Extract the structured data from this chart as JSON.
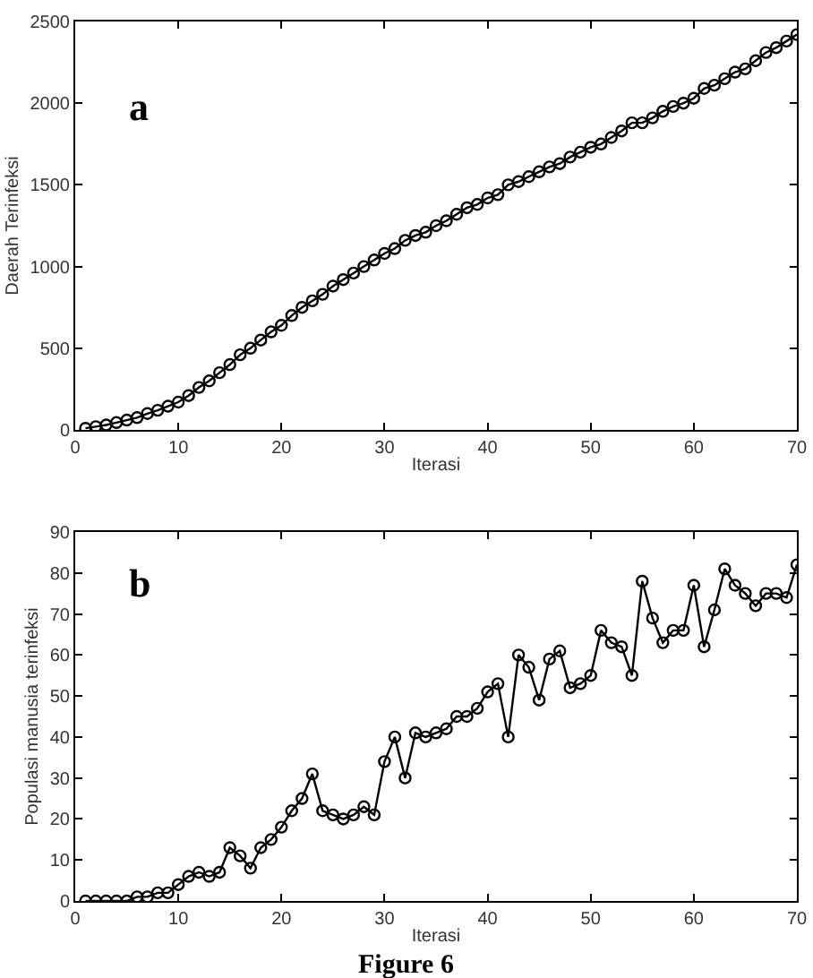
{
  "chart_data": [
    {
      "type": "line",
      "annotations": [
        "a"
      ],
      "xlabel": "Iterasi",
      "ylabel": "Daerah Terinfeksi",
      "marker": "circle",
      "line_style": "solid",
      "xlim": [
        0,
        70
      ],
      "xticks": [
        0,
        10,
        20,
        30,
        40,
        50,
        60,
        70
      ],
      "ylim": [
        0,
        2500
      ],
      "yticks": [
        0,
        500,
        1000,
        1500,
        2000,
        2500
      ],
      "x": [
        1,
        2,
        3,
        4,
        5,
        6,
        7,
        8,
        9,
        10,
        11,
        12,
        13,
        14,
        15,
        16,
        17,
        18,
        19,
        20,
        21,
        22,
        23,
        24,
        25,
        26,
        27,
        28,
        29,
        30,
        31,
        32,
        33,
        34,
        35,
        36,
        37,
        38,
        39,
        40,
        41,
        42,
        43,
        44,
        45,
        46,
        47,
        48,
        49,
        50,
        51,
        52,
        53,
        54,
        55,
        56,
        57,
        58,
        59,
        60,
        61,
        62,
        63,
        64,
        65,
        66,
        67,
        68,
        69,
        70
      ],
      "series": [
        {
          "color": "#000000",
          "values": [
            10,
            20,
            30,
            45,
            60,
            75,
            100,
            120,
            145,
            170,
            210,
            260,
            300,
            350,
            400,
            460,
            500,
            550,
            600,
            640,
            700,
            750,
            790,
            830,
            880,
            920,
            960,
            1000,
            1040,
            1080,
            1110,
            1160,
            1190,
            1210,
            1250,
            1280,
            1320,
            1360,
            1380,
            1420,
            1440,
            1500,
            1520,
            1550,
            1580,
            1610,
            1630,
            1670,
            1700,
            1730,
            1750,
            1790,
            1830,
            1880,
            1880,
            1910,
            1950,
            1980,
            2000,
            2030,
            2090,
            2110,
            2150,
            2190,
            2210,
            2260,
            2310,
            2340,
            2380,
            2420
          ]
        }
      ]
    },
    {
      "type": "line",
      "annotations": [
        "b",
        "Figure 6"
      ],
      "xlabel": "Iterasi",
      "ylabel": "Populasi manusia terinfeksi",
      "marker": "circle",
      "line_style": "solid",
      "xlim": [
        0,
        70
      ],
      "xticks": [
        0,
        10,
        20,
        30,
        40,
        50,
        60,
        70
      ],
      "ylim": [
        0,
        90
      ],
      "yticks": [
        0,
        10,
        20,
        30,
        40,
        50,
        60,
        70,
        80,
        90
      ],
      "x": [
        1,
        2,
        3,
        4,
        5,
        6,
        7,
        8,
        9,
        10,
        11,
        12,
        13,
        14,
        15,
        16,
        17,
        18,
        19,
        20,
        21,
        22,
        23,
        24,
        25,
        26,
        27,
        28,
        29,
        30,
        31,
        32,
        33,
        34,
        35,
        36,
        37,
        38,
        39,
        40,
        41,
        42,
        43,
        44,
        45,
        46,
        47,
        48,
        49,
        50,
        51,
        52,
        53,
        54,
        55,
        56,
        57,
        58,
        59,
        60,
        61,
        62,
        63,
        64,
        65,
        66,
        67,
        68,
        69,
        70
      ],
      "series": [
        {
          "color": "#000000",
          "values": [
            0,
            0,
            0,
            0,
            0,
            1,
            1,
            2,
            2,
            4,
            6,
            7,
            6,
            7,
            13,
            11,
            8,
            13,
            15,
            18,
            22,
            25,
            31,
            22,
            21,
            20,
            21,
            23,
            21,
            34,
            40,
            30,
            41,
            40,
            41,
            42,
            45,
            45,
            47,
            51,
            53,
            40,
            60,
            57,
            49,
            59,
            61,
            52,
            53,
            55,
            66,
            63,
            62,
            55,
            78,
            69,
            63,
            66,
            66,
            77,
            62,
            71,
            81,
            77,
            75,
            72,
            75,
            75,
            74,
            82
          ]
        }
      ]
    }
  ]
}
